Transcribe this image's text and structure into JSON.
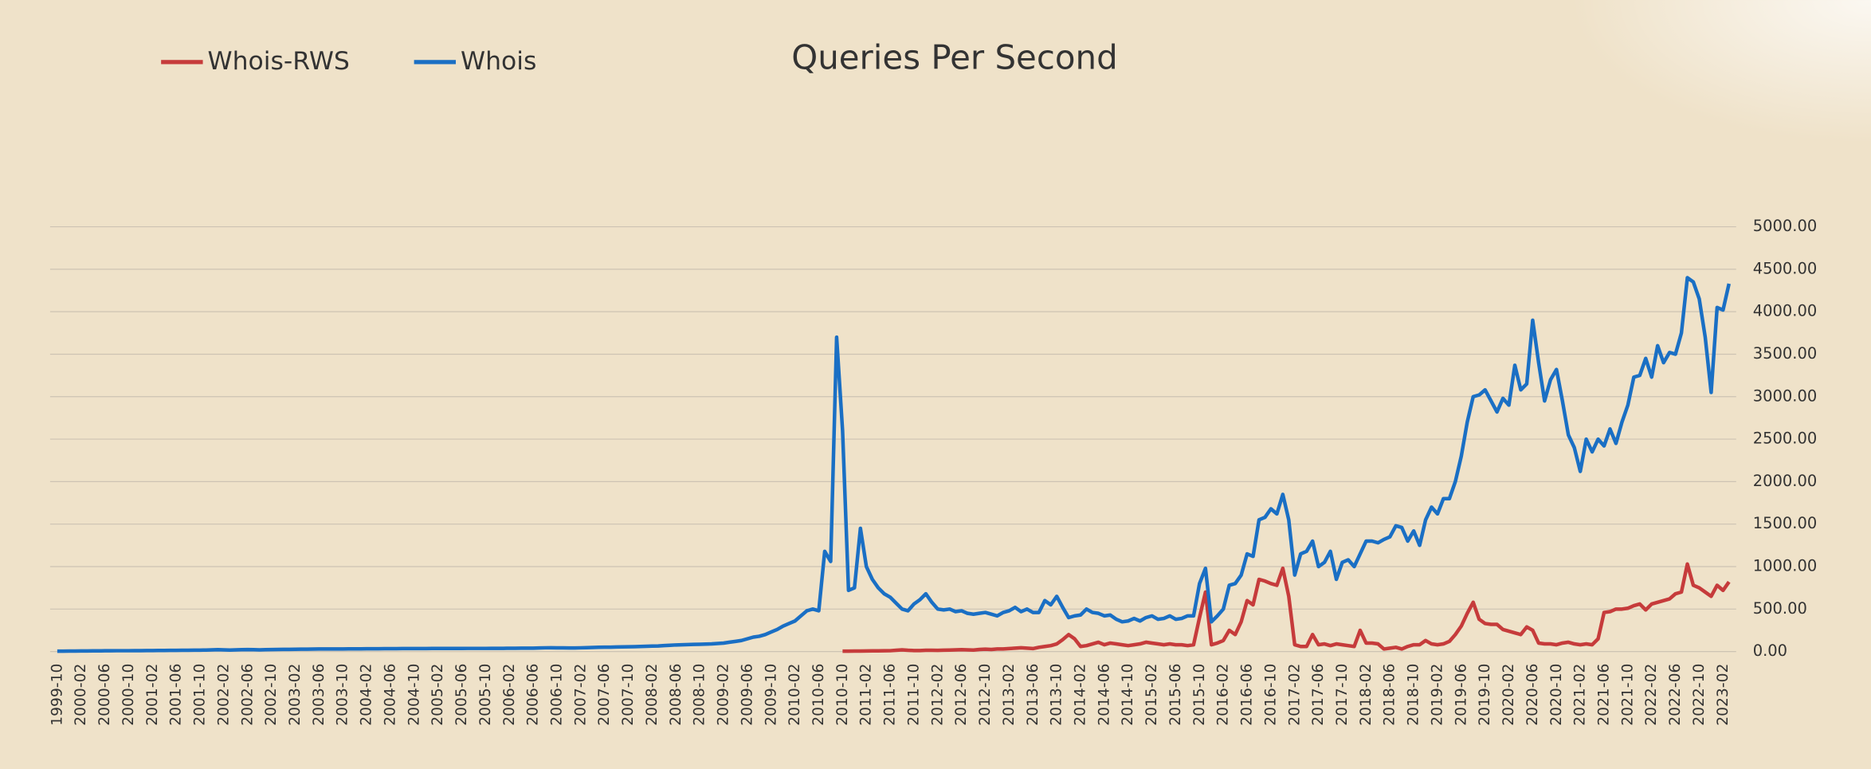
{
  "chart_data": {
    "type": "line",
    "title": "Queries Per Second",
    "categories": [
      "1999-10",
      null,
      null,
      null,
      "2000-02",
      null,
      null,
      null,
      "2000-06",
      null,
      null,
      null,
      "2000-10",
      null,
      null,
      null,
      "2001-02",
      null,
      null,
      null,
      "2001-06",
      null,
      null,
      null,
      "2001-10",
      null,
      null,
      null,
      "2002-02",
      null,
      null,
      null,
      "2002-06",
      null,
      null,
      null,
      "2002-10",
      null,
      null,
      null,
      "2003-02",
      null,
      null,
      null,
      "2003-06",
      null,
      null,
      null,
      "2003-10",
      null,
      null,
      null,
      "2004-02",
      null,
      null,
      null,
      "2004-06",
      null,
      null,
      null,
      "2004-10",
      null,
      null,
      null,
      "2005-02",
      null,
      null,
      null,
      "2005-06",
      null,
      null,
      null,
      "2005-10",
      null,
      null,
      null,
      "2006-02",
      null,
      null,
      null,
      "2006-06",
      null,
      null,
      null,
      "2006-10",
      null,
      null,
      null,
      "2007-02",
      null,
      null,
      null,
      "2007-06",
      null,
      null,
      null,
      "2007-10",
      null,
      null,
      null,
      "2008-02",
      null,
      null,
      null,
      "2008-06",
      null,
      null,
      null,
      "2008-10",
      null,
      null,
      null,
      "2009-02",
      null,
      null,
      null,
      "2009-06",
      null,
      null,
      null,
      "2009-10",
      null,
      null,
      null,
      "2010-02",
      null,
      null,
      null,
      "2010-06",
      null,
      null,
      null,
      "2010-10",
      null,
      null,
      null,
      "2011-02",
      null,
      null,
      null,
      "2011-06",
      null,
      null,
      null,
      "2011-10",
      null,
      null,
      null,
      "2012-02",
      null,
      null,
      null,
      "2012-06",
      null,
      null,
      null,
      "2012-10",
      null,
      null,
      null,
      "2013-02",
      null,
      null,
      null,
      "2013-06",
      null,
      null,
      null,
      "2013-10",
      null,
      null,
      null,
      "2014-02",
      null,
      null,
      null,
      "2014-06",
      null,
      null,
      null,
      "2014-10",
      null,
      null,
      null,
      "2015-02",
      null,
      null,
      null,
      "2015-06",
      null,
      null,
      null,
      "2015-10",
      null,
      null,
      null,
      "2016-02",
      null,
      null,
      null,
      "2016-06",
      null,
      null,
      null,
      "2016-10",
      null,
      null,
      null,
      "2017-02",
      null,
      null,
      null,
      "2017-06",
      null,
      null,
      null,
      "2017-10",
      null,
      null,
      null,
      "2018-02",
      null,
      null,
      null,
      "2018-06",
      null,
      null,
      null,
      "2018-10",
      null,
      null,
      null,
      "2019-02",
      null,
      null,
      null,
      "2019-06",
      null,
      null,
      null,
      "2019-10",
      null,
      null,
      null,
      "2020-02",
      null,
      null,
      null,
      "2020-06",
      null,
      null,
      null,
      "2020-10",
      null,
      null,
      null,
      "2021-02",
      null,
      null,
      null,
      "2021-06",
      null,
      null,
      null,
      "2021-10",
      null,
      null,
      null,
      "2022-02",
      null,
      null,
      null,
      "2022-06",
      null,
      null,
      null,
      "2022-10",
      null,
      null,
      null,
      "2023-02",
      null
    ],
    "series": [
      {
        "name": "Whois-RWS",
        "color": "#c63b3b",
        "values": [
          null,
          null,
          null,
          null,
          null,
          null,
          null,
          null,
          null,
          null,
          null,
          null,
          null,
          null,
          null,
          null,
          null,
          null,
          null,
          null,
          null,
          null,
          null,
          null,
          null,
          null,
          null,
          null,
          null,
          null,
          null,
          null,
          null,
          null,
          null,
          null,
          null,
          null,
          null,
          null,
          null,
          null,
          null,
          null,
          null,
          null,
          null,
          null,
          null,
          null,
          null,
          null,
          null,
          null,
          null,
          null,
          null,
          null,
          null,
          null,
          null,
          null,
          null,
          null,
          null,
          null,
          null,
          null,
          null,
          null,
          null,
          null,
          null,
          null,
          null,
          null,
          null,
          null,
          null,
          null,
          null,
          null,
          null,
          null,
          null,
          null,
          null,
          null,
          null,
          null,
          null,
          null,
          null,
          null,
          null,
          null,
          null,
          null,
          null,
          null,
          null,
          null,
          null,
          null,
          null,
          null,
          null,
          null,
          null,
          null,
          null,
          null,
          null,
          null,
          null,
          null,
          null,
          null,
          null,
          null,
          null,
          null,
          null,
          null,
          null,
          null,
          null,
          null,
          null,
          null,
          null,
          null,
          5,
          5,
          6,
          6,
          7,
          8,
          8,
          9,
          10,
          15,
          20,
          15,
          12,
          12,
          15,
          15,
          14,
          16,
          18,
          20,
          22,
          20,
          18,
          25,
          28,
          25,
          30,
          30,
          35,
          40,
          45,
          40,
          35,
          50,
          60,
          70,
          90,
          140,
          200,
          150,
          60,
          70,
          90,
          110,
          80,
          100,
          90,
          80,
          70,
          80,
          90,
          110,
          100,
          90,
          80,
          90,
          80,
          80,
          70,
          80,
          400,
          700,
          80,
          100,
          130,
          250,
          200,
          350,
          600,
          550,
          850,
          830,
          800,
          780,
          980,
          650,
          80,
          60,
          60,
          200,
          80,
          90,
          70,
          90,
          80,
          70,
          60,
          250,
          100,
          100,
          90,
          30,
          40,
          50,
          30,
          60,
          80,
          80,
          130,
          90,
          80,
          90,
          120,
          200,
          300,
          450,
          580,
          380,
          330,
          320,
          320,
          260,
          240,
          220,
          200,
          290,
          250,
          100,
          90,
          90,
          80,
          100,
          110,
          90,
          80,
          90,
          80,
          150,
          460,
          470,
          500,
          500,
          510,
          540,
          560,
          490,
          560,
          580,
          600,
          620,
          680,
          700,
          1030,
          780,
          750,
          700,
          650,
          780,
          720,
          820
        ]
      },
      {
        "name": "Whois",
        "color": "#1a6fc4",
        "values": [
          5,
          5,
          6,
          6,
          7,
          7,
          8,
          8,
          9,
          9,
          10,
          10,
          10,
          11,
          11,
          12,
          12,
          13,
          13,
          14,
          14,
          15,
          15,
          16,
          17,
          18,
          20,
          22,
          20,
          18,
          20,
          22,
          24,
          22,
          20,
          22,
          24,
          25,
          26,
          26,
          27,
          28,
          28,
          29,
          30,
          30,
          30,
          31,
          31,
          32,
          32,
          32,
          33,
          33,
          33,
          34,
          34,
          34,
          35,
          35,
          35,
          35,
          35,
          36,
          36,
          36,
          36,
          36,
          36,
          37,
          37,
          37,
          37,
          38,
          38,
          38,
          39,
          39,
          40,
          40,
          40,
          42,
          44,
          45,
          44,
          43,
          42,
          42,
          44,
          46,
          48,
          50,
          52,
          52,
          54,
          55,
          56,
          58,
          60,
          62,
          64,
          66,
          70,
          74,
          78,
          80,
          82,
          84,
          86,
          88,
          90,
          95,
          100,
          110,
          120,
          130,
          150,
          170,
          180,
          200,
          230,
          260,
          300,
          330,
          360,
          420,
          480,
          500,
          480,
          1180,
          1060,
          3700,
          2600,
          720,
          750,
          1450,
          1000,
          850,
          750,
          680,
          640,
          570,
          500,
          480,
          560,
          610,
          680,
          580,
          500,
          490,
          500,
          470,
          480,
          450,
          440,
          450,
          460,
          440,
          420,
          460,
          480,
          520,
          470,
          500,
          460,
          460,
          600,
          550,
          650,
          520,
          400,
          420,
          430,
          500,
          460,
          450,
          420,
          430,
          380,
          350,
          360,
          390,
          360,
          400,
          420,
          380,
          390,
          420,
          380,
          390,
          420,
          420,
          800,
          980,
          350,
          420,
          500,
          780,
          800,
          900,
          1150,
          1120,
          1550,
          1580,
          1680,
          1620,
          1850,
          1550,
          900,
          1150,
          1180,
          1300,
          1000,
          1050,
          1180,
          850,
          1050,
          1080,
          1000,
          1150,
          1300,
          1300,
          1280,
          1320,
          1350,
          1480,
          1460,
          1300,
          1420,
          1250,
          1550,
          1700,
          1620,
          1800,
          1800,
          2000,
          2300,
          2700,
          3000,
          3020,
          3080,
          2950,
          2820,
          2980,
          2900,
          3370,
          3080,
          3150,
          3900,
          3400,
          2950,
          3200,
          3320,
          2950,
          2550,
          2400,
          2120,
          2500,
          2350,
          2500,
          2420,
          2620,
          2450,
          2700,
          2900,
          3230,
          3250,
          3450,
          3230,
          3600,
          3400,
          3520,
          3500,
          3750,
          4400,
          4350,
          4150,
          3700,
          3050,
          4050,
          4020,
          4330
        ]
      }
    ],
    "ylim": [
      0,
      5000
    ],
    "yticks": [
      {
        "value": 0,
        "label": "0.00"
      },
      {
        "value": 500,
        "label": "500.00"
      },
      {
        "value": 1000,
        "label": "1000.00"
      },
      {
        "value": 1500,
        "label": "1500.00"
      },
      {
        "value": 2000,
        "label": "2000.00"
      },
      {
        "value": 2500,
        "label": "2500.00"
      },
      {
        "value": 3000,
        "label": "3000.00"
      },
      {
        "value": 3500,
        "label": "3500.00"
      },
      {
        "value": 4000,
        "label": "4000.00"
      },
      {
        "value": 4500,
        "label": "4500.00"
      },
      {
        "value": 5000,
        "label": "5000.00"
      }
    ],
    "grid": true,
    "legend": "top-left"
  }
}
